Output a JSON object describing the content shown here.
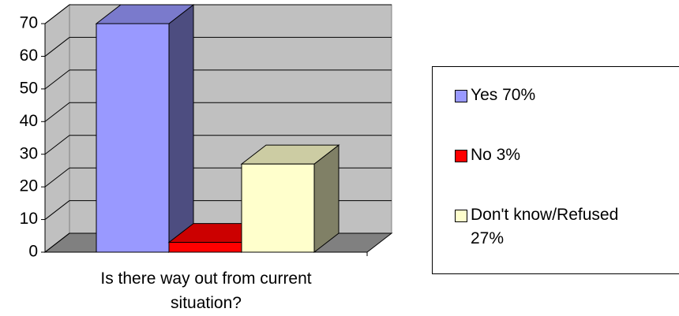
{
  "chart_data": {
    "type": "bar3d",
    "categories": [
      "Is there way out from current situation?"
    ],
    "series": [
      {
        "name": "Yes 70%",
        "color": "#9999ff",
        "values": [
          70
        ]
      },
      {
        "name": "No 3%",
        "color": "#ff0000",
        "values": [
          3
        ]
      },
      {
        "name": "Don't know/Refused 27%",
        "color": "#ffffcc",
        "values": [
          27
        ]
      }
    ],
    "ylim": [
      0,
      70
    ],
    "yticks": [
      0,
      10,
      20,
      30,
      40,
      50,
      60,
      70
    ],
    "grid": true,
    "legend": "right"
  }
}
